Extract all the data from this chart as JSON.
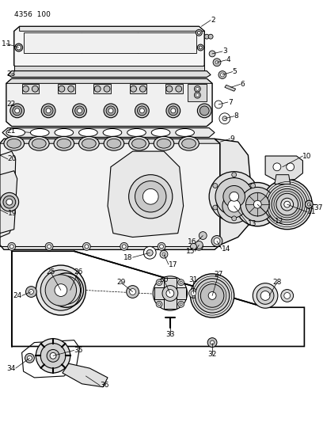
{
  "bg": "#ffffff",
  "fw": 4.08,
  "fh": 5.33,
  "dpi": 100,
  "lc": "black",
  "title": "4356  100"
}
